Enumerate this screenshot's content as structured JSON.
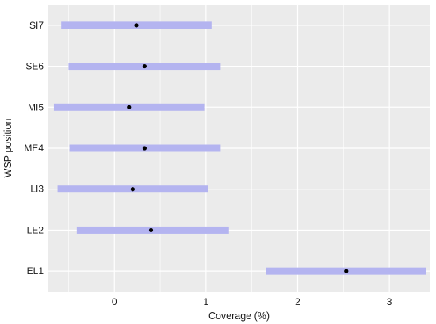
{
  "chart_data": {
    "type": "interval",
    "xlabel": "Coverage (%)",
    "ylabel": "WSP position",
    "xlim": [
      -0.72,
      3.44
    ],
    "xticks": [
      0,
      1,
      2,
      3
    ],
    "grid": true,
    "colors": {
      "panel": "#ebebeb",
      "grid": "#ffffff",
      "interval": "#b4b4f0",
      "point": "#000000"
    },
    "categories": [
      "SI7",
      "SE6",
      "MI5",
      "ME4",
      "LI3",
      "LE2",
      "EL1"
    ],
    "estimates": [
      0.24,
      0.33,
      0.16,
      0.33,
      0.2,
      0.4,
      2.53
    ],
    "lower": [
      -0.58,
      -0.5,
      -0.66,
      -0.49,
      -0.62,
      -0.41,
      1.65
    ],
    "upper": [
      1.06,
      1.16,
      0.98,
      1.16,
      1.02,
      1.25,
      3.4
    ]
  }
}
